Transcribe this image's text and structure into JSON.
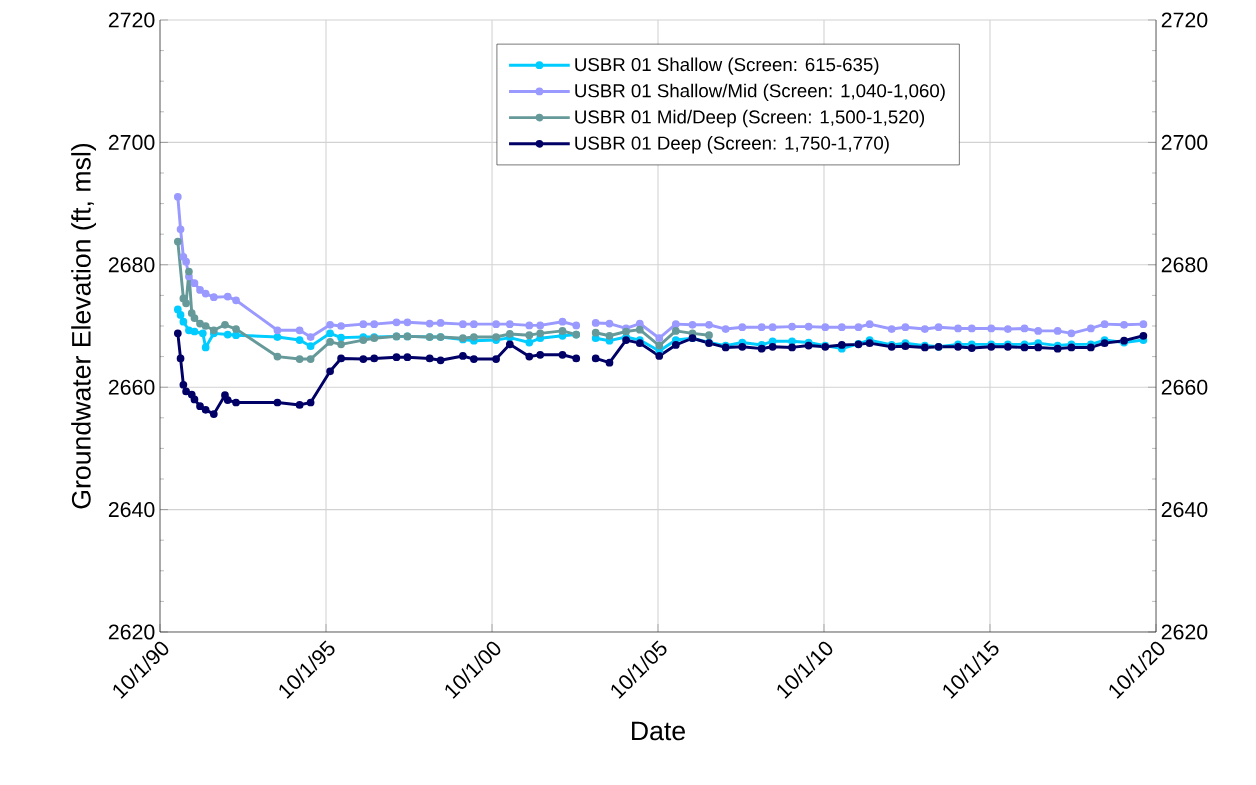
{
  "chart_data": {
    "type": "line",
    "xlabel": "Date",
    "ylabel": "Groundwater Elevation (ft, msl)",
    "xlim": [
      "1990-10-01",
      "2020-10-01"
    ],
    "xticks": [
      {
        "value": "1990-10-01",
        "label": "10/1/90"
      },
      {
        "value": "1995-10-01",
        "label": "10/1/95"
      },
      {
        "value": "2000-10-01",
        "label": "10/1/00"
      },
      {
        "value": "2005-10-01",
        "label": "10/1/05"
      },
      {
        "value": "2010-10-01",
        "label": "10/1/10"
      },
      {
        "value": "2015-10-01",
        "label": "10/1/15"
      },
      {
        "value": "2020-10-01",
        "label": "10/1/20"
      }
    ],
    "ylim": [
      2620,
      2720
    ],
    "yticks": [
      2620,
      2640,
      2660,
      2680,
      2700,
      2720
    ],
    "y2lim": [
      2620,
      2720
    ],
    "y2ticks": [
      2620,
      2640,
      2660,
      2680,
      2700,
      2720
    ],
    "grid": true,
    "legend": "top right",
    "marker": "circle",
    "line_style": "solid",
    "series": [
      {
        "name": "USBR 01 Shallow (Screen: 615-635)",
        "color": "#00ccff",
        "x": [
          "1991-04-15",
          "1991-05-15",
          "1991-06-15",
          "1991-08-15",
          "1991-10-15",
          "1992-01-15",
          "1992-02-15",
          "1992-05-15",
          "1992-10-15",
          "1993-01-15",
          "1994-04-15",
          "1994-12-15",
          "1995-04-15",
          "1995-11-15",
          "1996-03-15",
          "1996-11-15",
          "1997-03-15",
          "1997-11-15",
          "1998-03-15",
          "1998-11-15",
          "1999-03-15",
          "1999-11-15",
          "2000-03-15",
          "2000-11-15",
          "2001-04-15",
          "2001-11-15",
          "2002-03-15",
          "2002-11-15",
          "2003-04-15",
          "2003-08-15",
          "2003-11-15",
          "2004-04-15",
          "2004-10-15",
          "2005-03-15",
          "2005-10-15",
          "2006-04-15",
          "2006-10-15",
          "2007-04-15",
          "2007-10-15",
          "2008-04-15",
          "2008-11-15",
          "2009-03-15",
          "2009-10-15",
          "2010-04-15",
          "2010-10-15",
          "2011-04-15",
          "2011-10-15",
          "2012-02-15",
          "2012-10-15",
          "2013-03-15",
          "2013-10-15",
          "2014-03-15",
          "2014-10-15",
          "2015-03-15",
          "2015-10-15",
          "2016-04-15",
          "2016-10-15",
          "2017-03-15",
          "2017-10-15",
          "2018-03-15",
          "2018-10-15",
          "2019-03-15",
          "2019-10-15",
          "2020-05-15"
        ],
        "values": [
          2672.7,
          2671.8,
          2670.7,
          2669.3,
          2669.1,
          2668.8,
          2666.5,
          2668.8,
          2668.6,
          2668.5,
          2668.2,
          2667.7,
          2666.7,
          2668.8,
          2668.1,
          2668.2,
          2668.2,
          2668.3,
          2668.3,
          2668.2,
          2668.2,
          2667.8,
          2667.6,
          2667.7,
          2668.1,
          2667.3,
          2668.0,
          2668.4,
          2668.6,
          null,
          2668.0,
          2667.6,
          2668.2,
          2667.7,
          2665.9,
          2667.7,
          2668.0,
          2667.3,
          2666.8,
          2667.3,
          2666.9,
          2667.5,
          2667.5,
          2667.3,
          2666.8,
          2666.3,
          2667.1,
          2667.7,
          2666.9,
          2667.2,
          2666.8,
          2666.6,
          2667.0,
          2667.0,
          2667.0,
          2667.0,
          2667.0,
          2667.2,
          2666.8,
          2667.0,
          2667.0,
          2667.7,
          2667.3,
          2667.7
        ]
      },
      {
        "name": "USBR 01 Shallow/Mid (Screen: 1,040-1,060)",
        "color": "#9999ff",
        "x": [
          "1991-04-15",
          "1991-05-15",
          "1991-06-15",
          "1991-07-15",
          "1991-08-15",
          "1991-10-15",
          "1991-12-15",
          "1992-02-15",
          "1992-05-15",
          "1992-10-15",
          "1993-01-15",
          "1994-04-15",
          "1994-12-15",
          "1995-04-15",
          "1995-11-15",
          "1996-03-15",
          "1996-11-15",
          "1997-03-15",
          "1997-11-15",
          "1998-03-15",
          "1998-11-15",
          "1999-03-15",
          "1999-11-15",
          "2000-03-15",
          "2000-11-15",
          "2001-04-15",
          "2001-11-15",
          "2002-03-15",
          "2002-11-15",
          "2003-04-15",
          "2003-08-15",
          "2003-11-15",
          "2004-04-15",
          "2004-10-15",
          "2005-03-15",
          "2005-10-15",
          "2006-04-15",
          "2006-10-15",
          "2007-04-15",
          "2007-10-15",
          "2008-04-15",
          "2008-11-15",
          "2009-03-15",
          "2009-10-15",
          "2010-04-15",
          "2010-10-15",
          "2011-04-15",
          "2011-10-15",
          "2012-02-15",
          "2012-10-15",
          "2013-03-15",
          "2013-10-15",
          "2014-03-15",
          "2014-10-15",
          "2015-03-15",
          "2015-10-15",
          "2016-04-15",
          "2016-10-15",
          "2017-03-15",
          "2017-10-15",
          "2018-03-15",
          "2018-10-15",
          "2019-03-15",
          "2019-10-15",
          "2020-05-15"
        ],
        "values": [
          2691.1,
          2685.8,
          2681.3,
          2680.5,
          2678.1,
          2677.0,
          2675.9,
          2675.3,
          2674.7,
          2674.8,
          2674.2,
          2669.3,
          2669.3,
          2668.2,
          2670.2,
          2670.0,
          2670.3,
          2670.3,
          2670.6,
          2670.6,
          2670.4,
          2670.5,
          2670.3,
          2670.3,
          2670.3,
          2670.3,
          2670.1,
          2670.1,
          2670.7,
          2670.1,
          null,
          2670.5,
          2670.4,
          2669.6,
          2670.4,
          2668.0,
          2670.3,
          2670.2,
          2670.2,
          2669.5,
          2669.8,
          2669.8,
          2669.8,
          2669.9,
          2669.9,
          2669.8,
          2669.8,
          2669.8,
          2670.3,
          2669.5,
          2669.8,
          2669.5,
          2669.8,
          2669.6,
          2669.6,
          2669.6,
          2669.5,
          2669.6,
          2669.2,
          2669.2,
          2668.8,
          2669.6,
          2670.3,
          2670.2,
          2670.3
        ]
      },
      {
        "name": "USBR 01 Mid/Deep (Screen: 1,500-1,520)",
        "color": "#669999",
        "x": [
          "1991-04-15",
          "1991-06-15",
          "1991-07-15",
          "1991-08-15",
          "1991-09-15",
          "1991-10-15",
          "1991-12-15",
          "1992-02-15",
          "1992-05-15",
          "1992-09-15",
          "1993-01-15",
          "1994-04-15",
          "1994-12-15",
          "1995-04-15",
          "1995-11-15",
          "1996-03-15",
          "1996-11-15",
          "1997-03-15",
          "1997-11-15",
          "1998-03-15",
          "1998-11-15",
          "1999-03-15",
          "1999-11-15",
          "2000-03-15",
          "2000-11-15",
          "2001-04-15",
          "2001-11-15",
          "2002-03-15",
          "2002-11-15",
          "2003-04-15",
          "2003-08-15",
          "2003-11-15",
          "2004-04-15",
          "2004-10-15",
          "2005-03-15",
          "2005-10-15",
          "2006-04-15",
          "2006-10-15",
          "2007-04-15"
        ],
        "values": [
          2683.8,
          2674.5,
          2673.7,
          2678.9,
          2672.1,
          2671.3,
          2670.4,
          2670.0,
          2669.3,
          2670.2,
          2669.5,
          2665.0,
          2664.6,
          2664.6,
          2667.4,
          2667.0,
          2667.7,
          2668.0,
          2668.3,
          2668.3,
          2668.2,
          2668.2,
          2668.0,
          2668.2,
          2668.2,
          2668.7,
          2668.5,
          2668.8,
          2669.2,
          2668.6,
          null,
          2668.9,
          2668.4,
          2669.1,
          2669.4,
          2666.8,
          2669.2,
          2668.8,
          2668.5
        ]
      },
      {
        "name": "USBR 01 Deep (Screen: 1,750-1,770)",
        "color": "#000066",
        "x": [
          "1991-04-15",
          "1991-05-15",
          "1991-06-15",
          "1991-07-15",
          "1991-09-15",
          "1991-10-15",
          "1991-12-15",
          "1992-02-15",
          "1992-05-15",
          "1992-09-15",
          "1992-10-15",
          "1993-01-15",
          "1994-04-15",
          "1994-12-15",
          "1995-04-15",
          "1995-11-15",
          "1996-03-15",
          "1996-11-15",
          "1997-03-15",
          "1997-11-15",
          "1998-03-15",
          "1998-11-15",
          "1999-03-15",
          "1999-11-15",
          "2000-03-15",
          "2000-11-15",
          "2001-04-15",
          "2001-11-15",
          "2002-03-15",
          "2002-11-15",
          "2003-04-15",
          "2003-08-15",
          "2003-11-15",
          "2004-04-15",
          "2004-10-15",
          "2005-03-15",
          "2005-10-15",
          "2006-04-15",
          "2006-10-15",
          "2007-04-15",
          "2007-10-15",
          "2008-04-15",
          "2008-11-15",
          "2009-03-15",
          "2009-10-15",
          "2010-04-15",
          "2010-10-15",
          "2011-04-15",
          "2011-10-15",
          "2012-02-15",
          "2012-10-15",
          "2013-03-15",
          "2013-10-15",
          "2014-03-15",
          "2014-10-15",
          "2015-03-15",
          "2015-10-15",
          "2016-04-15",
          "2016-10-15",
          "2017-03-15",
          "2017-10-15",
          "2018-03-15",
          "2018-10-15",
          "2019-03-15",
          "2019-10-15",
          "2020-05-15"
        ],
        "values": [
          2668.8,
          2664.7,
          2660.4,
          2659.3,
          2658.8,
          2658.0,
          2656.9,
          2656.3,
          2655.6,
          2658.7,
          2657.9,
          2657.5,
          2657.5,
          2657.1,
          2657.5,
          2662.6,
          2664.7,
          2664.6,
          2664.7,
          2664.9,
          2664.9,
          2664.7,
          2664.4,
          2665.1,
          2664.6,
          2664.6,
          2667.0,
          2665.0,
          2665.3,
          2665.3,
          2664.7,
          null,
          2664.7,
          2664.0,
          2667.7,
          2667.2,
          2665.1,
          2666.9,
          2668.0,
          2667.2,
          2666.5,
          2666.6,
          2666.3,
          2666.6,
          2666.5,
          2666.8,
          2666.6,
          2666.9,
          2667.0,
          2667.2,
          2666.6,
          2666.7,
          2666.5,
          2666.6,
          2666.6,
          2666.4,
          2666.6,
          2666.6,
          2666.5,
          2666.5,
          2666.3,
          2666.5,
          2666.5,
          2667.2,
          2667.6,
          2668.4
        ]
      }
    ]
  }
}
